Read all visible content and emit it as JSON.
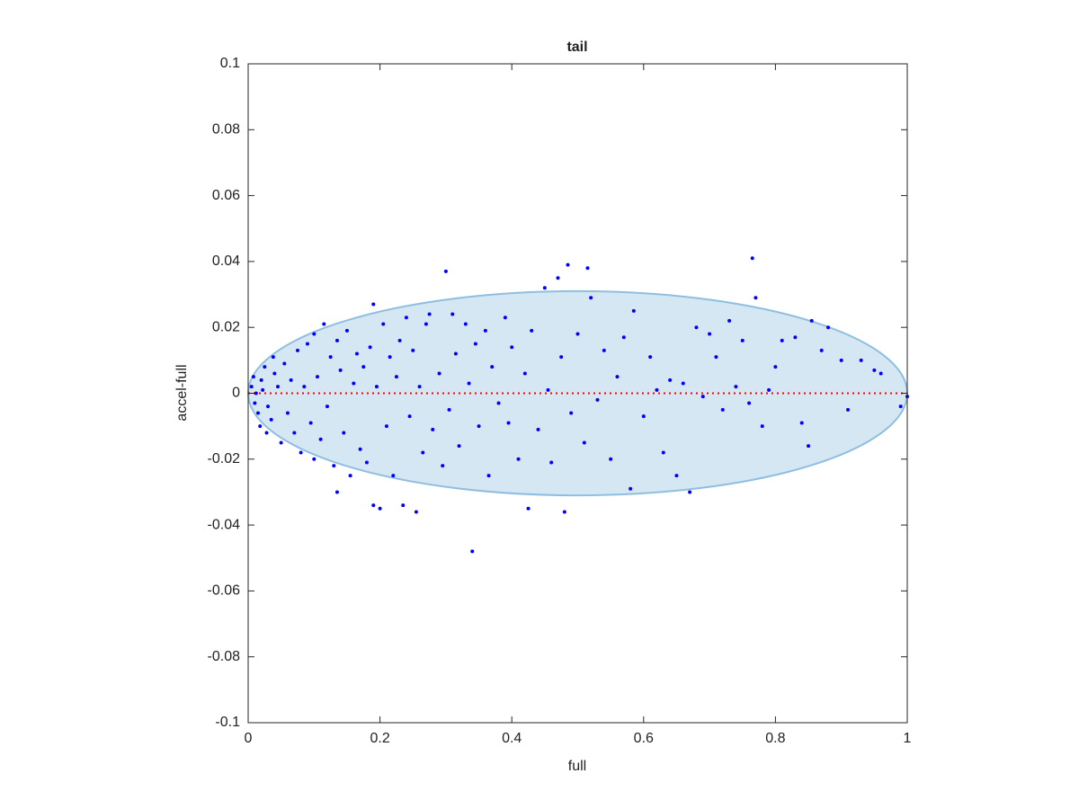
{
  "chart_data": {
    "type": "scatter",
    "title": "tail",
    "xlabel": "full",
    "ylabel": "accel-full",
    "color": "#0000ff",
    "xlim": [
      0,
      1
    ],
    "xticks": [
      0,
      0.2,
      0.4,
      0.6,
      0.8,
      1
    ],
    "ylim": [
      -0.1,
      0.1
    ],
    "yticks": [
      -0.1,
      -0.08,
      -0.06,
      -0.04,
      -0.02,
      0,
      0.02,
      0.04,
      0.06,
      0.08,
      0.1
    ],
    "ellipse": {
      "center": [
        0.5,
        0
      ],
      "radii": [
        0.5,
        0.031
      ],
      "fill": "#d6e7f4",
      "stroke": "#8fbfe0"
    },
    "hline": {
      "y": 0,
      "color": "#ff0000",
      "style": "dotted"
    },
    "x": [
      0.005,
      0.01,
      0.008,
      0.015,
      0.02,
      0.012,
      0.018,
      0.025,
      0.03,
      0.022,
      0.035,
      0.04,
      0.028,
      0.045,
      0.05,
      0.038,
      0.055,
      0.06,
      0.065,
      0.07,
      0.075,
      0.08,
      0.085,
      0.09,
      0.095,
      0.1,
      0.1,
      0.105,
      0.11,
      0.115,
      0.12,
      0.125,
      0.13,
      0.135,
      0.135,
      0.14,
      0.145,
      0.15,
      0.155,
      0.16,
      0.165,
      0.17,
      0.175,
      0.18,
      0.185,
      0.19,
      0.19,
      0.195,
      0.2,
      0.205,
      0.21,
      0.215,
      0.22,
      0.225,
      0.23,
      0.235,
      0.24,
      0.245,
      0.25,
      0.255,
      0.26,
      0.265,
      0.27,
      0.275,
      0.28,
      0.29,
      0.295,
      0.3,
      0.305,
      0.31,
      0.315,
      0.32,
      0.33,
      0.335,
      0.34,
      0.345,
      0.35,
      0.36,
      0.365,
      0.37,
      0.38,
      0.39,
      0.395,
      0.4,
      0.41,
      0.42,
      0.425,
      0.43,
      0.44,
      0.45,
      0.455,
      0.46,
      0.47,
      0.475,
      0.48,
      0.485,
      0.49,
      0.5,
      0.51,
      0.515,
      0.52,
      0.53,
      0.54,
      0.55,
      0.56,
      0.57,
      0.58,
      0.585,
      0.6,
      0.61,
      0.62,
      0.63,
      0.64,
      0.65,
      0.66,
      0.67,
      0.68,
      0.69,
      0.7,
      0.71,
      0.72,
      0.73,
      0.74,
      0.75,
      0.76,
      0.765,
      0.77,
      0.78,
      0.79,
      0.8,
      0.81,
      0.83,
      0.84,
      0.85,
      0.855,
      0.87,
      0.88,
      0.9,
      0.91,
      0.93,
      0.95,
      0.96,
      0.99,
      1.0
    ],
    "values": [
      0.002,
      -0.003,
      0.005,
      -0.006,
      0.004,
      0.0,
      -0.01,
      0.008,
      -0.004,
      0.001,
      -0.008,
      0.006,
      -0.012,
      0.002,
      -0.015,
      0.011,
      0.009,
      -0.006,
      0.004,
      -0.012,
      0.013,
      -0.018,
      0.002,
      0.015,
      -0.009,
      0.018,
      -0.02,
      0.005,
      -0.014,
      0.021,
      -0.004,
      0.011,
      -0.022,
      0.016,
      -0.03,
      0.007,
      -0.012,
      0.019,
      -0.025,
      0.003,
      0.012,
      -0.017,
      0.008,
      -0.021,
      0.014,
      -0.034,
      0.027,
      0.002,
      -0.035,
      0.021,
      -0.01,
      0.011,
      -0.025,
      0.005,
      0.016,
      -0.034,
      0.023,
      -0.007,
      0.013,
      -0.036,
      0.002,
      -0.018,
      0.021,
      0.024,
      -0.011,
      0.006,
      -0.022,
      0.037,
      -0.005,
      0.024,
      0.012,
      -0.016,
      0.021,
      0.003,
      -0.048,
      0.015,
      -0.01,
      0.019,
      -0.025,
      0.008,
      -0.003,
      0.023,
      -0.009,
      0.014,
      -0.02,
      0.006,
      -0.035,
      0.019,
      -0.011,
      0.032,
      0.001,
      -0.021,
      0.035,
      0.011,
      -0.036,
      0.039,
      -0.006,
      0.018,
      -0.015,
      0.038,
      0.029,
      -0.002,
      0.013,
      -0.02,
      0.005,
      0.017,
      -0.029,
      0.025,
      -0.007,
      0.011,
      0.001,
      -0.018,
      0.004,
      -0.025,
      0.003,
      -0.03,
      0.02,
      -0.001,
      0.018,
      0.011,
      -0.005,
      0.022,
      0.002,
      0.016,
      -0.003,
      0.041,
      0.029,
      -0.01,
      0.001,
      0.008,
      0.016,
      0.017,
      -0.009,
      -0.016,
      0.022,
      0.013,
      0.02,
      0.01,
      -0.005,
      0.01,
      0.007,
      0.006,
      -0.004,
      -0.001
    ]
  }
}
